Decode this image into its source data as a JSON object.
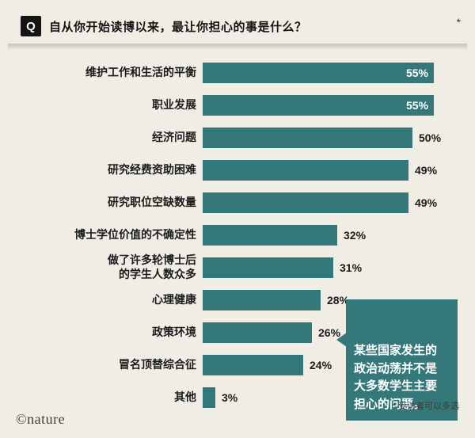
{
  "page": {
    "background": "#f0ede5",
    "accent_color": "#35787a"
  },
  "header": {
    "q_badge": "Q",
    "question": "自从你开始读博以来，最让你担心的事是什么？",
    "asterisk": "*"
  },
  "chart_data": {
    "type": "bar",
    "orientation": "horizontal",
    "title": "自从你开始读博以来，最让你担心的事是什么？",
    "categories": [
      "维护工作和生活的平衡",
      "职业发展",
      "经济问题",
      "研究经费资助困难",
      "研究职位空缺数量",
      "博士学位价值的不确定性",
      "做了许多轮博士后\n的学生人数众多",
      "心理健康",
      "政策环境",
      "冒名顶替综合征",
      "其他"
    ],
    "values": [
      55,
      55,
      50,
      49,
      49,
      32,
      31,
      28,
      26,
      24,
      3
    ],
    "value_labels": [
      "55%",
      "55%",
      "50%",
      "49%",
      "49%",
      "32%",
      "31%",
      "28%",
      "26%",
      "24%",
      "3%"
    ],
    "labels_inside_bar": [
      true,
      true,
      false,
      false,
      false,
      false,
      false,
      false,
      false,
      false,
      false
    ],
    "xlim": [
      0,
      55
    ],
    "bar_color": "#35787a",
    "grid": false,
    "legend": false,
    "annotation": {
      "text": "某些国家发生的\n政治动荡并不是\n大多数学生主要\n担心的问题。",
      "background": "#35787a",
      "points_to": "政策环境"
    },
    "footnote": "* 受访者可以多选"
  },
  "footer": {
    "brand": "©nature"
  }
}
